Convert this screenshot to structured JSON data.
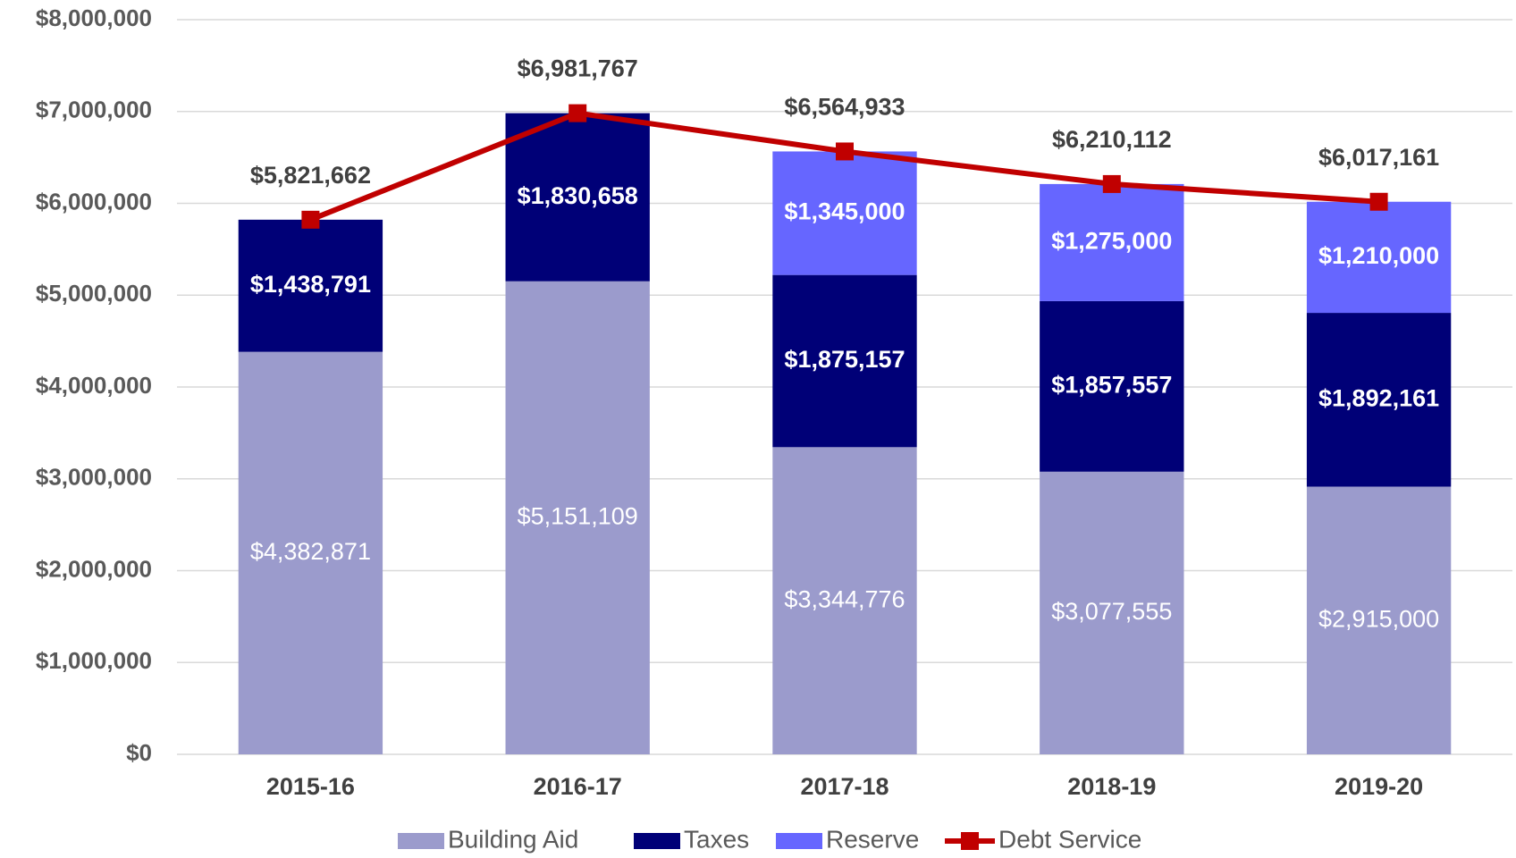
{
  "chart_data": {
    "type": "bar",
    "stacked": true,
    "categories": [
      "2015-16",
      "2016-17",
      "2017-18",
      "2018-19",
      "2019-20"
    ],
    "series": [
      {
        "name": "Building Aid",
        "color": "#9b9bcc",
        "values": [
          4382871,
          5151109,
          3344776,
          3077555,
          2915000
        ],
        "value_labels": [
          "$4,382,871",
          "$5,151,109",
          "$3,344,776",
          "$3,077,555",
          "$2,915,000"
        ]
      },
      {
        "name": "Taxes",
        "color": "#000077",
        "values": [
          1438791,
          1830658,
          1875157,
          1857557,
          1892161
        ],
        "value_labels": [
          "$1,438,791",
          "$1,830,658",
          "$1,875,157",
          "$1,857,557",
          "$1,892,161"
        ]
      },
      {
        "name": "Reserve",
        "color": "#6666ff",
        "values": [
          null,
          null,
          1345000,
          1275000,
          1210000
        ],
        "value_labels": [
          null,
          null,
          "$1,345,000",
          "$1,275,000",
          "$1,210,000"
        ]
      },
      {
        "name": "Debt Service",
        "type": "line",
        "color": "#c00000",
        "values": [
          5821662,
          6981767,
          6564933,
          6210112,
          6017161
        ],
        "value_labels": [
          "$5,821,662",
          "$6,981,767",
          "$6,564,933",
          "$6,210,112",
          "$6,017,161"
        ]
      }
    ],
    "ylim": [
      0,
      8000000
    ],
    "yticks": [
      {
        "value": 0,
        "label": "$0"
      },
      {
        "value": 1000000,
        "label": "$1,000,000"
      },
      {
        "value": 2000000,
        "label": "$2,000,000"
      },
      {
        "value": 3000000,
        "label": "$3,000,000"
      },
      {
        "value": 4000000,
        "label": "$4,000,000"
      },
      {
        "value": 5000000,
        "label": "$5,000,000"
      },
      {
        "value": 6000000,
        "label": "$6,000,000"
      },
      {
        "value": 7000000,
        "label": "$7,000,000"
      },
      {
        "value": 8000000,
        "label": "$8,000,000"
      }
    ],
    "grid": true,
    "legend": "bottom"
  }
}
